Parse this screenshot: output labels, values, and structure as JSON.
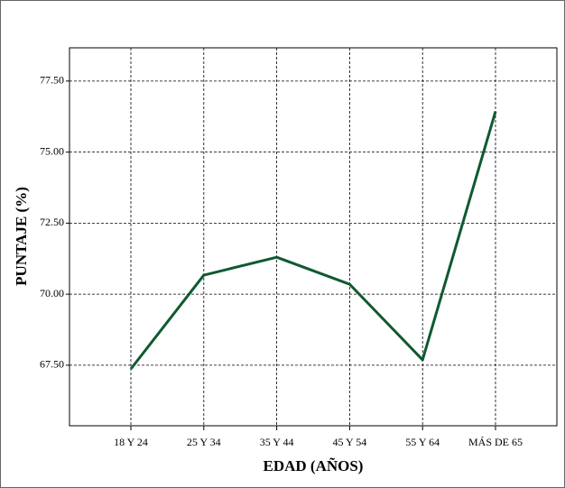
{
  "chart_data": {
    "type": "line",
    "x_label": "EDAD (AÑOS)",
    "y_label": "PUNTAJE (%)",
    "categories": [
      "18 Y 24",
      "25 Y 34",
      "35 Y 44",
      "45 Y 54",
      "55 Y 64",
      "MÁS DE 65"
    ],
    "values": [
      67.37,
      70.67,
      71.3,
      70.35,
      67.69,
      76.43
    ],
    "color": "#0e5a2f",
    "ylim": [
      65.37,
      78.67
    ],
    "yticks": [
      {
        "value": 67.5,
        "label": "67.50"
      },
      {
        "value": 70,
        "label": "70.00"
      },
      {
        "value": 72.5,
        "label": "72.50"
      },
      {
        "value": 75,
        "label": "75.00"
      },
      {
        "value": 77.5,
        "label": "77.50"
      }
    ],
    "grid": true
  }
}
